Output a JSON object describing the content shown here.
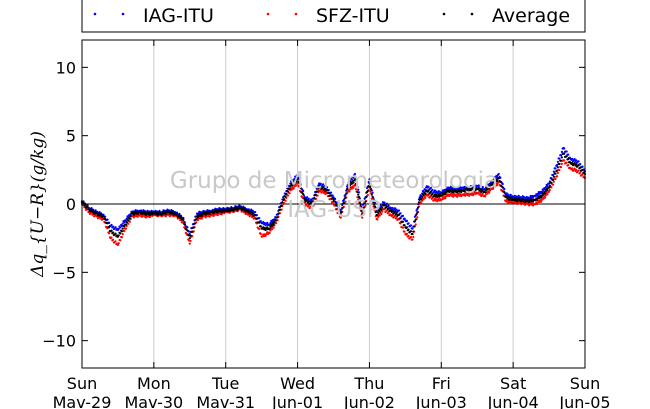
{
  "chart_data": {
    "type": "scatter",
    "title": "",
    "xlabel": "",
    "ylabel": "Δq_{U−R}(g/kg)",
    "ylim": [
      -12,
      12
    ],
    "yticks": [
      10,
      5,
      0,
      -5,
      -10
    ],
    "xlim": [
      0,
      7
    ],
    "xticks": [
      {
        "day": "Sun",
        "date": "Mav-29"
      },
      {
        "day": "Mon",
        "date": "Mav-30"
      },
      {
        "day": "Tue",
        "date": "Mav-31"
      },
      {
        "day": "Wed",
        "date": "Jun-01"
      },
      {
        "day": "Thu",
        "date": "Jun-02"
      },
      {
        "day": "Fri",
        "date": "Jun-03"
      },
      {
        "day": "Sat",
        "date": "Jun-04"
      },
      {
        "day": "Sun",
        "date": "Jun-05"
      }
    ],
    "grid": "vertical",
    "legend_position": "top",
    "watermark": [
      "Grupo de Micrometeorologia",
      "IAG-USP"
    ],
    "x": [
      0.0,
      0.1,
      0.2,
      0.3,
      0.4,
      0.5,
      0.6,
      0.7,
      0.8,
      0.9,
      1.0,
      1.1,
      1.2,
      1.3,
      1.4,
      1.5,
      1.6,
      1.7,
      1.8,
      1.9,
      2.0,
      2.1,
      2.2,
      2.3,
      2.4,
      2.5,
      2.6,
      2.7,
      2.8,
      2.9,
      3.0,
      3.1,
      3.2,
      3.3,
      3.4,
      3.5,
      3.6,
      3.7,
      3.8,
      3.9,
      4.0,
      4.1,
      4.2,
      4.3,
      4.4,
      4.5,
      4.6,
      4.7,
      4.8,
      4.9,
      5.0,
      5.1,
      5.2,
      5.3,
      5.4,
      5.5,
      5.6,
      5.7,
      5.8,
      5.9,
      6.0,
      6.1,
      6.2,
      6.3,
      6.4,
      6.5,
      6.6,
      6.7,
      6.8,
      6.9,
      7.0
    ],
    "series": [
      {
        "name": "IAG-ITU",
        "color": "#0000ff",
        "values": [
          0.2,
          -0.3,
          -0.6,
          -0.8,
          -1.6,
          -1.9,
          -1.2,
          -0.6,
          -0.5,
          -0.6,
          -0.6,
          -0.6,
          -0.5,
          -0.6,
          -1.0,
          -2.2,
          -0.7,
          -0.6,
          -0.5,
          -0.4,
          -0.4,
          -0.3,
          -0.2,
          -0.4,
          -0.6,
          -1.4,
          -1.5,
          -1.0,
          0.5,
          1.5,
          2.1,
          0.5,
          0.2,
          1.5,
          1.2,
          0.5,
          -0.5,
          1.4,
          2.2,
          -0.4,
          1.8,
          -0.5,
          0.1,
          -0.3,
          -0.5,
          -1.2,
          -1.8,
          0.5,
          1.3,
          0.9,
          0.8,
          1.2,
          1.1,
          1.2,
          1.2,
          1.3,
          1.1,
          1.6,
          2.2,
          0.7,
          0.5,
          0.5,
          0.4,
          0.6,
          0.9,
          1.5,
          2.8,
          4.1,
          3.3,
          3.1,
          2.4
        ]
      },
      {
        "name": "SFZ-ITU",
        "color": "#ff0000",
        "values": [
          0.0,
          -0.6,
          -0.9,
          -1.1,
          -2.5,
          -3.0,
          -1.8,
          -0.9,
          -0.8,
          -0.9,
          -0.8,
          -0.8,
          -0.8,
          -0.8,
          -1.3,
          -2.9,
          -1.1,
          -0.9,
          -0.8,
          -0.7,
          -0.6,
          -0.5,
          -0.4,
          -0.7,
          -1.0,
          -2.4,
          -2.1,
          -1.4,
          0.0,
          1.0,
          1.5,
          0.0,
          -0.3,
          1.0,
          0.8,
          0.0,
          -1.0,
          0.9,
          1.4,
          -1.0,
          1.2,
          -1.1,
          -0.4,
          -0.8,
          -1.1,
          -2.2,
          -2.6,
          0.0,
          0.7,
          0.3,
          0.3,
          0.7,
          0.6,
          0.7,
          0.7,
          0.8,
          0.6,
          1.1,
          1.6,
          0.2,
          0.1,
          0.1,
          0.0,
          0.0,
          0.3,
          0.9,
          2.0,
          3.2,
          2.6,
          2.4,
          1.9
        ]
      },
      {
        "name": "Average",
        "color": "#000000",
        "values": [
          0.1,
          -0.4,
          -0.7,
          -0.9,
          -2.0,
          -2.4,
          -1.5,
          -0.7,
          -0.6,
          -0.7,
          -0.7,
          -0.7,
          -0.6,
          -0.7,
          -1.1,
          -2.5,
          -0.9,
          -0.7,
          -0.6,
          -0.5,
          -0.5,
          -0.4,
          -0.3,
          -0.5,
          -0.8,
          -1.8,
          -1.8,
          -1.2,
          0.3,
          1.3,
          1.8,
          0.3,
          0.0,
          1.3,
          1.0,
          0.3,
          -0.7,
          1.2,
          1.8,
          -0.7,
          1.5,
          -0.8,
          -0.1,
          -0.5,
          -0.8,
          -1.7,
          -2.2,
          0.3,
          1.0,
          0.6,
          0.6,
          1.0,
          0.9,
          1.0,
          1.0,
          1.1,
          0.9,
          1.4,
          1.9,
          0.5,
          0.3,
          0.3,
          0.2,
          0.3,
          0.6,
          1.2,
          2.4,
          3.7,
          3.0,
          2.8,
          2.2
        ]
      }
    ]
  }
}
